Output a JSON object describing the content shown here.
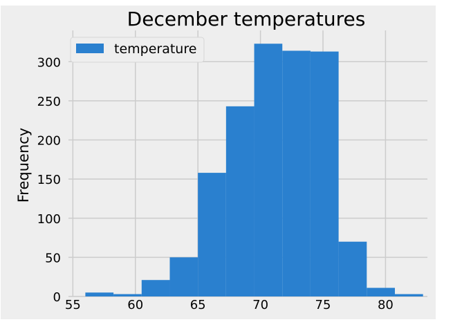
{
  "chart_data": {
    "type": "bar",
    "title": "December temperatures",
    "xlabel": "",
    "ylabel": "Frequency",
    "xlim": [
      54.65,
      83.35
    ],
    "ylim": [
      0,
      340
    ],
    "xticks": [
      55,
      60,
      65,
      70,
      75,
      80
    ],
    "yticks": [
      0,
      50,
      100,
      150,
      200,
      250,
      300
    ],
    "grid": true,
    "legend_position": "upper-left",
    "series": [
      {
        "name": "temperature",
        "color": "#2a80cf",
        "bins": [
          {
            "x0": 56.0,
            "x1": 58.25,
            "count": 5
          },
          {
            "x0": 58.25,
            "x1": 60.5,
            "count": 3
          },
          {
            "x0": 60.5,
            "x1": 62.75,
            "count": 21
          },
          {
            "x0": 62.75,
            "x1": 65.0,
            "count": 50
          },
          {
            "x0": 65.0,
            "x1": 67.25,
            "count": 158
          },
          {
            "x0": 67.25,
            "x1": 69.5,
            "count": 243
          },
          {
            "x0": 69.5,
            "x1": 71.75,
            "count": 323
          },
          {
            "x0": 71.75,
            "x1": 74.0,
            "count": 314
          },
          {
            "x0": 74.0,
            "x1": 76.25,
            "count": 313
          },
          {
            "x0": 76.25,
            "x1": 78.5,
            "count": 70
          },
          {
            "x0": 78.5,
            "x1": 80.75,
            "count": 11
          },
          {
            "x0": 80.75,
            "x1": 83.0,
            "count": 3
          }
        ]
      }
    ]
  },
  "colors": {
    "plot_background": "#eeeeee",
    "figure_background": "#ffffff",
    "grid": "#cccccc",
    "bar": "#2a80cf",
    "text": "#000000"
  }
}
